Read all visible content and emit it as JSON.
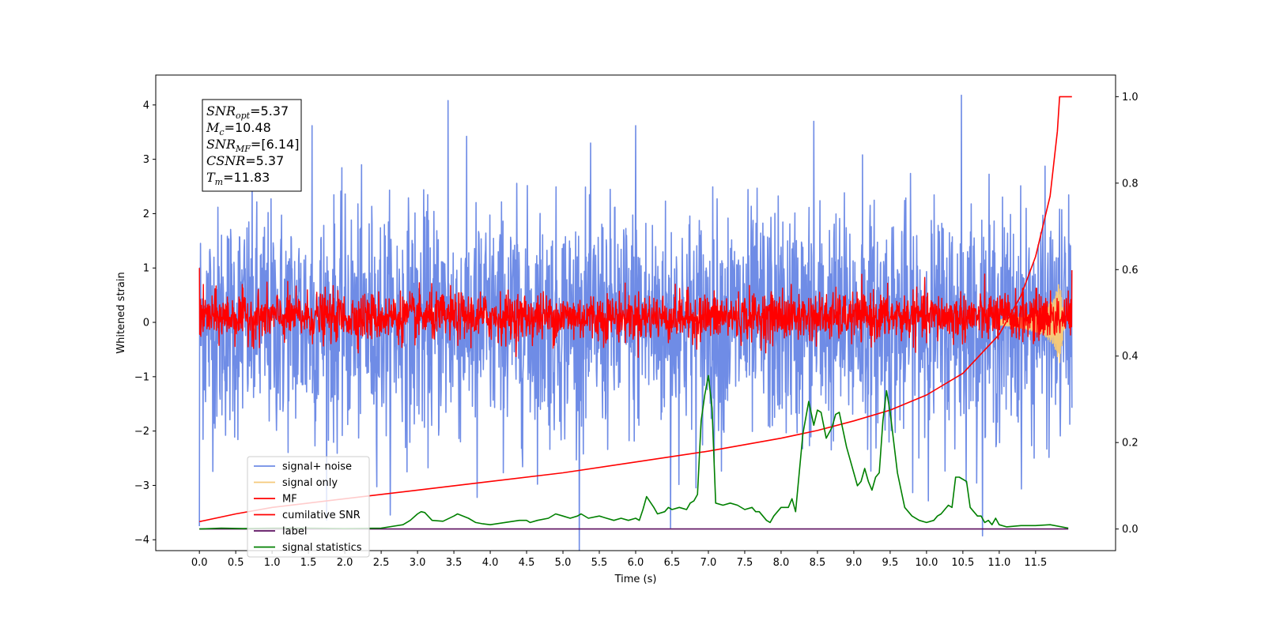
{
  "chart_data": {
    "type": "line",
    "xlabel": "Time (s)",
    "ylabel": "Whitened strain",
    "xlim": [
      -0.6,
      12.6
    ],
    "ylim": [
      -4.2,
      4.55
    ],
    "y2lim": [
      -0.05,
      1.05
    ],
    "x_ticks": [
      0.0,
      0.5,
      1.0,
      1.5,
      2.0,
      2.5,
      3.0,
      3.5,
      4.0,
      4.5,
      5.0,
      5.5,
      6.0,
      6.5,
      7.0,
      7.5,
      8.0,
      8.5,
      9.0,
      9.5,
      10.0,
      10.5,
      11.0,
      11.5
    ],
    "x_tick_labels": [
      "0.0",
      "0.5",
      "1.0",
      "1.5",
      "2.0",
      "2.5",
      "3.0",
      "3.5",
      "4.0",
      "4.5",
      "5.0",
      "5.5",
      "6.0",
      "6.5",
      "7.0",
      "7.5",
      "8.0",
      "8.5",
      "9.0",
      "9.5",
      "10.0",
      "10.5",
      "11.0",
      "11.5"
    ],
    "y_ticks": [
      -4,
      -3,
      -2,
      -1,
      0,
      1,
      2,
      3,
      4
    ],
    "y_tick_labels": [
      "−4",
      "−3",
      "−2",
      "−1",
      "0",
      "1",
      "2",
      "3",
      "4"
    ],
    "y2_ticks": [
      0.0,
      0.2,
      0.4,
      0.6,
      0.8,
      1.0
    ],
    "y2_tick_labels": [
      "0.0",
      "0.2",
      "0.4",
      "0.6",
      "0.8",
      "1.0"
    ],
    "grid": false,
    "legend_position": "lower-left",
    "series": [
      {
        "name": "signal+ noise",
        "color": "#6f8ce6",
        "axis": "left",
        "style": "noise",
        "x_range": [
          0.0,
          12.0
        ],
        "typical_range": [
          -1.9,
          1.9
        ],
        "peaks": [
          [
            3.42,
            4.08
          ],
          [
            10.48,
            4.18
          ],
          [
            6.48,
            -3.78
          ],
          [
            0.0,
            -3.75
          ],
          [
            3.82,
            -3.22
          ],
          [
            9.12,
            3.08
          ],
          [
            1.55,
            3.62
          ],
          [
            6.0,
            3.62
          ],
          [
            8.45,
            3.7
          ]
        ]
      },
      {
        "name": "signal only",
        "color": "#f5c97a",
        "axis": "left",
        "style": "chirp",
        "x": [
          11.0,
          11.3,
          11.6,
          11.75,
          11.83,
          11.9
        ],
        "amplitude": [
          0.05,
          0.1,
          0.22,
          0.42,
          0.75,
          0.05
        ]
      },
      {
        "name": "MF",
        "color": "#ff0000",
        "axis": "left",
        "style": "noise",
        "x_range": [
          0.0,
          12.0
        ],
        "typical_range": [
          -0.3,
          0.5
        ],
        "peaks": [
          [
            8.02,
            0.63
          ],
          [
            0.0,
            1.0
          ],
          [
            12.0,
            0.96
          ]
        ]
      },
      {
        "name": "cumilative SNR",
        "color": "#ff0000",
        "axis": "right",
        "style": "line",
        "x": [
          0.0,
          0.5,
          1.0,
          2.0,
          3.0,
          4.0,
          5.0,
          6.0,
          7.0,
          8.0,
          8.5,
          9.0,
          9.5,
          10.0,
          10.5,
          11.0,
          11.3,
          11.5,
          11.7,
          11.8,
          11.83,
          12.0
        ],
        "y": [
          0.017,
          0.035,
          0.05,
          0.07,
          0.09,
          0.11,
          0.13,
          0.155,
          0.18,
          0.21,
          0.228,
          0.25,
          0.275,
          0.31,
          0.36,
          0.45,
          0.54,
          0.63,
          0.77,
          0.92,
          1.0,
          1.0
        ]
      },
      {
        "name": "label",
        "color": "#5b0f5f",
        "axis": "right",
        "style": "line",
        "x": [
          0.0,
          11.95
        ],
        "y": [
          0.0,
          0.0
        ]
      },
      {
        "name": "signal statistics",
        "color": "#008000",
        "axis": "right",
        "style": "line",
        "x": [
          0.0,
          0.3,
          0.6,
          1.0,
          1.5,
          2.0,
          2.5,
          2.8,
          2.9,
          3.0,
          3.05,
          3.1,
          3.2,
          3.35,
          3.5,
          3.55,
          3.7,
          3.8,
          3.9,
          4.0,
          4.2,
          4.4,
          4.5,
          4.55,
          4.65,
          4.8,
          4.9,
          5.0,
          5.1,
          5.2,
          5.25,
          5.35,
          5.5,
          5.6,
          5.7,
          5.8,
          5.9,
          6.0,
          6.05,
          6.1,
          6.15,
          6.25,
          6.3,
          6.4,
          6.45,
          6.5,
          6.6,
          6.7,
          6.75,
          6.8,
          6.85,
          6.9,
          6.95,
          7.0,
          7.05,
          7.1,
          7.2,
          7.3,
          7.4,
          7.5,
          7.6,
          7.65,
          7.7,
          7.8,
          7.85,
          7.9,
          8.0,
          8.1,
          8.15,
          8.2,
          8.3,
          8.38,
          8.45,
          8.5,
          8.55,
          8.62,
          8.7,
          8.75,
          8.8,
          8.9,
          9.0,
          9.05,
          9.1,
          9.15,
          9.2,
          9.25,
          9.3,
          9.35,
          9.4,
          9.45,
          9.5,
          9.6,
          9.7,
          9.8,
          9.9,
          10.0,
          10.1,
          10.15,
          10.2,
          10.3,
          10.35,
          10.4,
          10.45,
          10.55,
          10.6,
          10.7,
          10.75,
          10.8,
          10.85,
          10.9,
          10.95,
          11.0,
          11.1,
          11.3,
          11.5,
          11.7,
          11.95
        ],
        "y": [
          0.0,
          0.002,
          0.001,
          0.002,
          0.002,
          0.001,
          0.002,
          0.01,
          0.02,
          0.035,
          0.04,
          0.038,
          0.02,
          0.018,
          0.03,
          0.035,
          0.025,
          0.015,
          0.012,
          0.01,
          0.015,
          0.02,
          0.02,
          0.015,
          0.02,
          0.025,
          0.035,
          0.03,
          0.025,
          0.03,
          0.035,
          0.025,
          0.03,
          0.025,
          0.02,
          0.025,
          0.02,
          0.025,
          0.02,
          0.045,
          0.075,
          0.05,
          0.035,
          0.04,
          0.05,
          0.045,
          0.05,
          0.045,
          0.06,
          0.065,
          0.08,
          0.25,
          0.31,
          0.355,
          0.28,
          0.06,
          0.055,
          0.06,
          0.055,
          0.045,
          0.05,
          0.04,
          0.04,
          0.02,
          0.015,
          0.03,
          0.05,
          0.05,
          0.07,
          0.04,
          0.22,
          0.295,
          0.24,
          0.275,
          0.27,
          0.21,
          0.235,
          0.265,
          0.27,
          0.19,
          0.13,
          0.1,
          0.11,
          0.14,
          0.11,
          0.09,
          0.12,
          0.13,
          0.25,
          0.32,
          0.27,
          0.13,
          0.05,
          0.03,
          0.02,
          0.015,
          0.02,
          0.03,
          0.035,
          0.055,
          0.05,
          0.12,
          0.12,
          0.11,
          0.05,
          0.03,
          0.03,
          0.015,
          0.02,
          0.01,
          0.025,
          0.01,
          0.005,
          0.008,
          0.008,
          0.01,
          0.002
        ]
      }
    ],
    "annotation_lines": [
      {
        "main": "SNR",
        "sub": "opt",
        "value": "=5.37"
      },
      {
        "main": "M",
        "sub": "c",
        "value": "=10.48"
      },
      {
        "main": "SNR",
        "sub": "MF",
        "value": "=[6.14]"
      },
      {
        "main": "CSNR",
        "sub": "",
        "value": "=5.37"
      },
      {
        "main": "T",
        "sub": "m",
        "value": "=11.83"
      }
    ]
  }
}
